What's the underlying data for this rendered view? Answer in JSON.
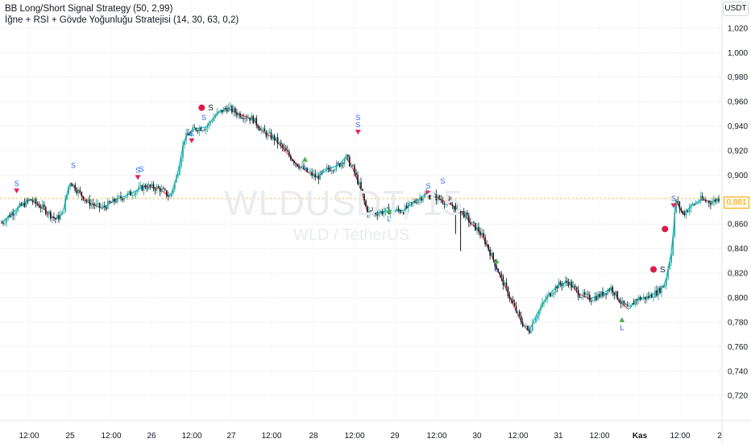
{
  "legend": {
    "line1": "BB Long/Short Signal Strategy (50, 2,99)",
    "line2": "İğne + RSI + Gövde Yoğunluğu Stratejisi (14, 30, 63, 0,2)"
  },
  "currency_label": "USDT",
  "current_price_label": "0,881",
  "watermark": {
    "symbol": "WLDUSDT, 15",
    "name": "WLD / TetherUS"
  },
  "colors": {
    "up_candle": "#26a69a",
    "down_candle": "#131722",
    "bb_line_up": "#00bcd4",
    "bb_line_down": "#f23645",
    "signal_marker": "#e91e63",
    "signal_dot": "#d81b4a",
    "signal_text": "#2962ff",
    "long_marker": "#4caf50",
    "price_tag": "#f7a600"
  },
  "chart_data": {
    "type": "candlestick",
    "ylim": [
      0.705,
      1.037
    ],
    "y_ticks": [
      "1,020",
      "1,000",
      "0,980",
      "0,960",
      "0,940",
      "0,920",
      "0,900",
      "0,880",
      "0,860",
      "0,840",
      "0,820",
      "0,800",
      "0,780",
      "0,760",
      "0,740",
      "0,720"
    ],
    "y_tick_values": [
      1.02,
      1.0,
      0.98,
      0.96,
      0.94,
      0.92,
      0.9,
      0.88,
      0.86,
      0.84,
      0.82,
      0.8,
      0.78,
      0.76,
      0.74,
      0.72
    ],
    "x_ticks": [
      "12:00",
      "25",
      "12:00",
      "26",
      "12:00",
      "27",
      "12:00",
      "28",
      "12:00",
      "29",
      "12:00",
      "30",
      "12:00",
      "31",
      "12:00",
      "Kas",
      "12:00",
      "2"
    ],
    "close_path": [
      [
        0,
        0.861
      ],
      [
        0.02,
        0.872
      ],
      [
        0.04,
        0.88
      ],
      [
        0.06,
        0.872
      ],
      [
        0.075,
        0.864
      ],
      [
        0.085,
        0.868
      ],
      [
        0.095,
        0.895
      ],
      [
        0.105,
        0.888
      ],
      [
        0.12,
        0.878
      ],
      [
        0.14,
        0.873
      ],
      [
        0.16,
        0.88
      ],
      [
        0.18,
        0.885
      ],
      [
        0.2,
        0.891
      ],
      [
        0.22,
        0.889
      ],
      [
        0.235,
        0.882
      ],
      [
        0.245,
        0.9
      ],
      [
        0.255,
        0.93
      ],
      [
        0.27,
        0.938
      ],
      [
        0.285,
        0.939
      ],
      [
        0.3,
        0.95
      ],
      [
        0.315,
        0.955
      ],
      [
        0.33,
        0.95
      ],
      [
        0.35,
        0.946
      ],
      [
        0.365,
        0.935
      ],
      [
        0.38,
        0.93
      ],
      [
        0.395,
        0.92
      ],
      [
        0.41,
        0.91
      ],
      [
        0.425,
        0.903
      ],
      [
        0.44,
        0.898
      ],
      [
        0.455,
        0.905
      ],
      [
        0.47,
        0.908
      ],
      [
        0.48,
        0.915
      ],
      [
        0.49,
        0.905
      ],
      [
        0.5,
        0.89
      ],
      [
        0.51,
        0.87
      ],
      [
        0.52,
        0.869
      ],
      [
        0.54,
        0.871
      ],
      [
        0.56,
        0.871
      ],
      [
        0.575,
        0.878
      ],
      [
        0.59,
        0.884
      ],
      [
        0.605,
        0.882
      ],
      [
        0.62,
        0.878
      ],
      [
        0.635,
        0.873
      ],
      [
        0.645,
        0.868
      ],
      [
        0.655,
        0.86
      ],
      [
        0.665,
        0.855
      ],
      [
        0.675,
        0.845
      ],
      [
        0.685,
        0.832
      ],
      [
        0.695,
        0.818
      ],
      [
        0.705,
        0.805
      ],
      [
        0.715,
        0.792
      ],
      [
        0.725,
        0.78
      ],
      [
        0.735,
        0.772
      ],
      [
        0.745,
        0.785
      ],
      [
        0.76,
        0.8
      ],
      [
        0.775,
        0.81
      ],
      [
        0.79,
        0.813
      ],
      [
        0.805,
        0.803
      ],
      [
        0.82,
        0.799
      ],
      [
        0.835,
        0.802
      ],
      [
        0.85,
        0.808
      ],
      [
        0.865,
        0.795
      ],
      [
        0.875,
        0.79
      ],
      [
        0.885,
        0.799
      ],
      [
        0.9,
        0.8
      ],
      [
        0.915,
        0.805
      ],
      [
        0.925,
        0.811
      ],
      [
        0.935,
        0.84
      ],
      [
        0.94,
        0.88
      ],
      [
        0.95,
        0.868
      ],
      [
        0.96,
        0.874
      ],
      [
        0.975,
        0.88
      ],
      [
        0.99,
        0.878
      ],
      [
        1.0,
        0.881
      ]
    ],
    "signals": [
      {
        "x": 0.021,
        "y": 0.887,
        "type": "short",
        "label": "S"
      },
      {
        "x": 0.1,
        "y": 0.906,
        "type": "short-text",
        "label": "S"
      },
      {
        "x": 0.19,
        "y": 0.898,
        "type": "short",
        "label": "S"
      },
      {
        "x": 0.195,
        "y": 0.903,
        "type": "short-text",
        "label": "S"
      },
      {
        "x": 0.265,
        "y": 0.928,
        "type": "short",
        "label": "S"
      },
      {
        "x": 0.279,
        "y": 0.955,
        "type": "dot",
        "label": "S"
      },
      {
        "x": 0.282,
        "y": 0.945,
        "type": "short-text",
        "label": "S"
      },
      {
        "x": 0.423,
        "y": 0.913,
        "type": "long",
        "label": "L"
      },
      {
        "x": 0.497,
        "y": 0.935,
        "type": "short",
        "label": "S"
      },
      {
        "x": 0.497,
        "y": 0.945,
        "type": "short-text",
        "label": "S"
      },
      {
        "x": 0.54,
        "y": 0.871,
        "type": "long",
        "label": "L"
      },
      {
        "x": 0.595,
        "y": 0.885,
        "type": "short",
        "label": "S"
      },
      {
        "x": 0.615,
        "y": 0.893,
        "type": "short-text",
        "label": "S"
      },
      {
        "x": 0.69,
        "y": 0.83,
        "type": "long",
        "label": "L"
      },
      {
        "x": 0.865,
        "y": 0.782,
        "type": "long",
        "label": "L"
      },
      {
        "x": 0.909,
        "y": 0.823,
        "type": "dot",
        "label": "S"
      },
      {
        "x": 0.925,
        "y": 0.856,
        "type": "dot",
        "label": ""
      },
      {
        "x": 0.937,
        "y": 0.875,
        "type": "short",
        "label": "S"
      }
    ]
  }
}
